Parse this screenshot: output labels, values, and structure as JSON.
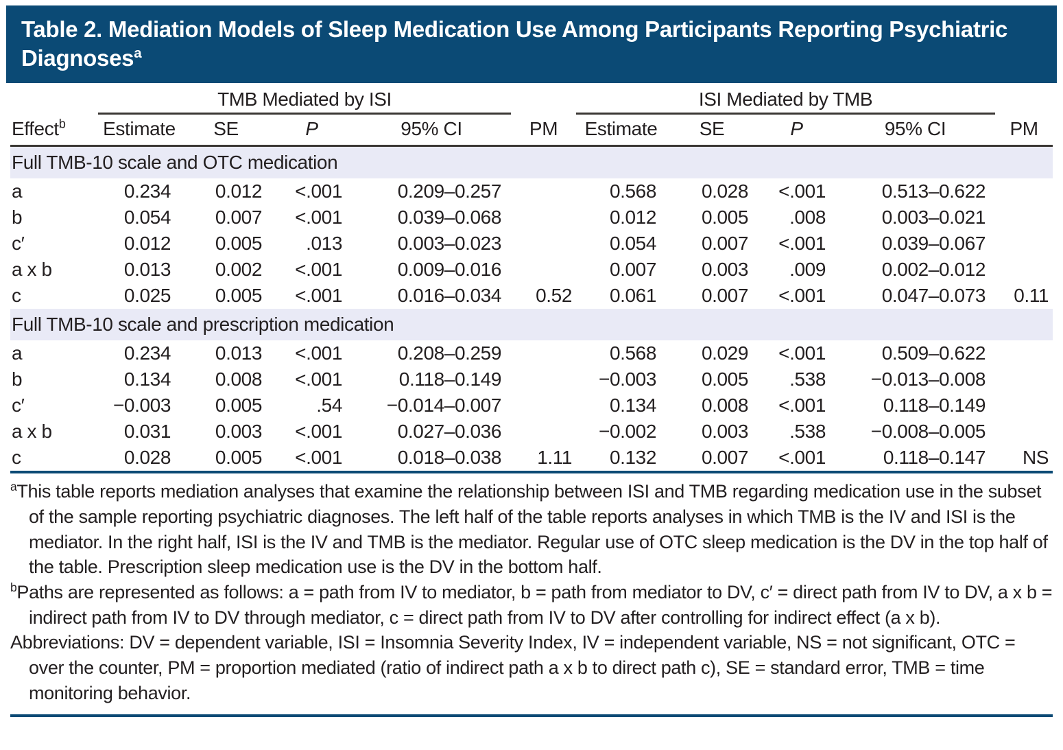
{
  "title": {
    "text": "Table 2. Mediation Models of Sleep Medication Use Among Participants Reporting Psychiatric Diagnoses",
    "superscript": "a"
  },
  "colors": {
    "title_bar_bg": "#0b4a75",
    "title_text": "#ffffff",
    "section_band_bg": "#e9eaf6",
    "rule_navy": "#0b4a75",
    "body_text": "#231f20"
  },
  "table": {
    "effect_header": {
      "label": "Effect",
      "superscript": "b"
    },
    "spanners": [
      {
        "label": "TMB Mediated by ISI"
      },
      {
        "label": "ISI Mediated by TMB"
      }
    ],
    "pm_headers": [
      "PM",
      "PM"
    ],
    "columns": [
      "Estimate",
      "SE",
      "P",
      "95% CI",
      "Estimate",
      "SE",
      "P",
      "95% CI"
    ],
    "sections": [
      {
        "label": "Full TMB-10 scale and OTC medication",
        "rows": [
          {
            "effect": "a",
            "cells": [
              "0.234",
              "0.012",
              "<.001",
              "0.209–0.257",
              "",
              "0.568",
              "0.028",
              "<.001",
              "0.513–0.622",
              ""
            ]
          },
          {
            "effect": "b",
            "cells": [
              "0.054",
              "0.007",
              "<.001",
              "0.039–0.068",
              "",
              "0.012",
              "0.005",
              ".008",
              "0.003–0.021",
              ""
            ]
          },
          {
            "effect": "c′",
            "cells": [
              "0.012",
              "0.005",
              ".013",
              "0.003–0.023",
              "",
              "0.054",
              "0.007",
              "<.001",
              "0.039–0.067",
              ""
            ]
          },
          {
            "effect": "a x b",
            "cells": [
              "0.013",
              "0.002",
              "<.001",
              "0.009–0.016",
              "",
              "0.007",
              "0.003",
              ".009",
              "0.002–0.012",
              ""
            ]
          },
          {
            "effect": "c",
            "cells": [
              "0.025",
              "0.005",
              "<.001",
              "0.016–0.034",
              "0.52",
              "0.061",
              "0.007",
              "<.001",
              "0.047–0.073",
              "0.11"
            ]
          }
        ]
      },
      {
        "label": "Full TMB-10 scale and prescription medication",
        "rows": [
          {
            "effect": "a",
            "cells": [
              "0.234",
              "0.013",
              "<.001",
              "0.208–0.259",
              "",
              "0.568",
              "0.029",
              "<.001",
              "0.509–0.622",
              ""
            ]
          },
          {
            "effect": "b",
            "cells": [
              "0.134",
              "0.008",
              "<.001",
              "0.118–0.149",
              "",
              "−0.003",
              "0.005",
              ".538",
              "−0.013–0.008",
              ""
            ]
          },
          {
            "effect": "c′",
            "cells": [
              "−0.003",
              "0.005",
              ".54",
              "−0.014–0.007",
              "",
              "0.134",
              "0.008",
              "<.001",
              "0.118–0.149",
              ""
            ]
          },
          {
            "effect": "a x b",
            "cells": [
              "0.031",
              "0.003",
              "<.001",
              "0.027–0.036",
              "",
              "−0.002",
              "0.003",
              ".538",
              "−0.008–0.005",
              ""
            ]
          },
          {
            "effect": "c",
            "cells": [
              "0.028",
              "0.005",
              "<.001",
              "0.018–0.038",
              "1.11",
              "0.132",
              "0.007",
              "<.001",
              "0.118–0.147",
              "NS"
            ]
          }
        ]
      }
    ]
  },
  "footnotes": [
    {
      "marker": "a",
      "text": "This table reports mediation analyses that examine the relationship between ISI and TMB regarding medication use in the subset of the sample reporting psychiatric diagnoses. The left half of the table reports analyses in which TMB is the IV and ISI is the mediator. In the right half, ISI is the IV and TMB is the mediator. Regular use of OTC sleep medication is the DV in the top half of the table. Prescription sleep medication use is the DV in the bottom half."
    },
    {
      "marker": "b",
      "text": "Paths are represented as follows: a = path from IV to mediator, b = path from mediator to DV, c′ = direct path from IV to DV, a x b = indirect path from IV to DV through mediator, c = direct path from IV to DV after controlling for indirect effect (a x b)."
    },
    {
      "marker": "",
      "text": "Abbreviations: DV = dependent variable, ISI = Insomnia Severity Index, IV = independent variable, NS = not significant, OTC = over the counter, PM = proportion mediated (ratio of indirect path a x b to direct path c), SE = standard error, TMB = time monitoring behavior."
    }
  ]
}
